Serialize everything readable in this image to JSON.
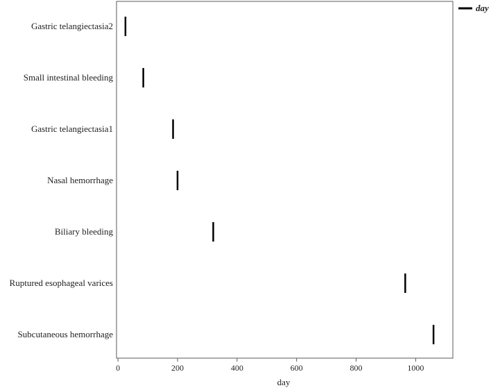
{
  "chart_data": {
    "type": "scatter",
    "marker": "vertical-line",
    "categories": [
      "Gastric telangiectasia2",
      "Small intestinal bleeding",
      "Gastric telangiectasia1",
      "Nasal hemorrhage",
      "Biliary bleeding",
      "Ruptured esophageal varices",
      "Subcutaneous hemorrhage"
    ],
    "series": [
      {
        "name": "day",
        "values": [
          25,
          85,
          185,
          200,
          320,
          965,
          1060
        ]
      }
    ],
    "xlabel": "day",
    "ylabel": "",
    "title": "",
    "xlim": [
      -5,
      1125
    ],
    "xticks": [
      0,
      200,
      400,
      600,
      800,
      1000
    ],
    "grid": false,
    "legend_position": "top-right",
    "colors": {
      "marker": "#000000",
      "frame": "#5a5a5a",
      "text": "#222222",
      "background": "#ffffff"
    }
  }
}
